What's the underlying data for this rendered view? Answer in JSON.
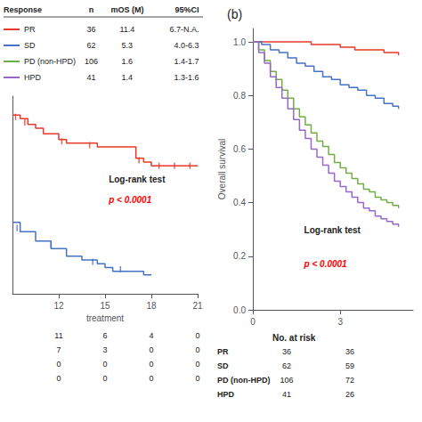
{
  "chart_data": [
    {
      "type": "line",
      "line_style": "step",
      "xlabel": "treatment",
      "xlim": [
        9,
        21
      ],
      "xticks": [
        12,
        15,
        18,
        21
      ],
      "ylim": [
        0,
        1.05
      ],
      "tick_labels": "x",
      "grid": false,
      "table": {
        "headers": [
          "Response",
          "n",
          "mOS (M)",
          "95%CI"
        ],
        "rows": [
          [
            "PR",
            "36",
            "11.4",
            "6.7-N.A."
          ],
          [
            "SD",
            "62",
            "5.3",
            "4.0-6.3"
          ],
          [
            "PD (non-HPD)",
            "106",
            "1.6",
            "1.4-1.7"
          ],
          [
            "HPD",
            "41",
            "1.4",
            "1.3-1.6"
          ]
        ],
        "colors": [
          "#e8392a",
          "#4472c4",
          "#70ad47",
          "#9966cc"
        ]
      },
      "series": [
        {
          "color": "#e8392a",
          "x": [
            9,
            9.5,
            10.0,
            10.5,
            11.0,
            12.0,
            12.5,
            14.5,
            17.0,
            17.5,
            18.0,
            21.0
          ],
          "values": [
            0.95,
            0.93,
            0.9,
            0.88,
            0.85,
            0.82,
            0.8,
            0.78,
            0.72,
            0.7,
            0.68,
            0.68
          ],
          "censor_x": [
            9.2,
            9.8,
            12.2,
            14.0,
            17.2,
            18.5,
            19.5,
            20.5
          ],
          "censor_values": [
            0.94,
            0.91,
            0.81,
            0.79,
            0.71,
            0.68,
            0.68,
            0.68
          ]
        },
        {
          "color": "#4472c4",
          "x": [
            9,
            9.5,
            10.5,
            11.5,
            12.5,
            13.5,
            14.5,
            15.0,
            15.5,
            17.5,
            18.0
          ],
          "values": [
            0.38,
            0.33,
            0.28,
            0.24,
            0.2,
            0.18,
            0.16,
            0.14,
            0.12,
            0.1,
            0.1
          ],
          "censor_x": [
            9.3,
            11.5,
            14.2,
            16.0
          ],
          "censor_values": [
            0.35,
            0.26,
            0.17,
            0.13
          ]
        }
      ],
      "annotations": [
        {
          "text": "Log-rank test"
        },
        {
          "text": "p < 0.0001",
          "color": "red"
        }
      ],
      "risk_table": {
        "times": [
          12,
          15,
          18,
          21
        ],
        "rows": [
          {
            "values": [
              11,
              6,
              4,
              0
            ]
          },
          {
            "values": [
              7,
              3,
              0,
              0
            ]
          },
          {
            "values": [
              0,
              0,
              0,
              0
            ]
          },
          {
            "values": [
              0,
              0,
              0,
              0
            ]
          }
        ]
      }
    },
    {
      "type": "line",
      "line_style": "step",
      "title": "(b)",
      "ylabel": "Overall survival",
      "xlim": [
        0,
        5.5
      ],
      "xticks": [
        0,
        3
      ],
      "ylim": [
        0,
        1.05
      ],
      "yticks": [
        {
          "value": 0,
          "label": "0.0"
        },
        0.2,
        0.4,
        0.6,
        0.8,
        {
          "value": 1,
          "label": "1.0"
        }
      ],
      "grid": false,
      "series": [
        {
          "color": "#e8392a",
          "x": [
            0,
            0.5,
            1,
            1.5,
            2,
            2.5,
            3,
            3.5,
            4,
            4.5,
            5
          ],
          "values": [
            1.0,
            1.0,
            1.0,
            1.0,
            0.99,
            0.99,
            0.98,
            0.97,
            0.97,
            0.96,
            0.95
          ]
        },
        {
          "color": "#4472c4",
          "x": [
            0,
            0.3,
            0.6,
            0.9,
            1.2,
            1.5,
            1.8,
            2.1,
            2.4,
            2.7,
            3.0,
            3.3,
            3.6,
            3.9,
            4.2,
            4.5,
            4.8,
            5.0
          ],
          "values": [
            1.0,
            0.99,
            0.97,
            0.96,
            0.94,
            0.92,
            0.91,
            0.89,
            0.87,
            0.86,
            0.84,
            0.83,
            0.82,
            0.8,
            0.79,
            0.77,
            0.76,
            0.75
          ]
        },
        {
          "color": "#70ad47",
          "x": [
            0,
            0.2,
            0.4,
            0.6,
            0.8,
            1.0,
            1.2,
            1.4,
            1.6,
            1.8,
            2.0,
            2.2,
            2.4,
            2.6,
            2.8,
            3.0,
            3.2,
            3.4,
            3.6,
            3.8,
            4.0,
            4.2,
            4.4,
            4.6,
            4.8,
            5.0
          ],
          "values": [
            1.0,
            0.97,
            0.93,
            0.89,
            0.86,
            0.82,
            0.79,
            0.75,
            0.72,
            0.69,
            0.66,
            0.63,
            0.61,
            0.58,
            0.55,
            0.53,
            0.51,
            0.49,
            0.47,
            0.45,
            0.44,
            0.42,
            0.41,
            0.4,
            0.39,
            0.38
          ]
        },
        {
          "color": "#9966cc",
          "x": [
            0,
            0.2,
            0.4,
            0.6,
            0.8,
            1.0,
            1.2,
            1.4,
            1.6,
            1.8,
            2.0,
            2.2,
            2.4,
            2.6,
            2.8,
            3.0,
            3.2,
            3.4,
            3.6,
            3.8,
            4.0,
            4.2,
            4.4,
            4.6,
            4.8,
            5.0
          ],
          "values": [
            1.0,
            0.96,
            0.92,
            0.87,
            0.83,
            0.79,
            0.75,
            0.71,
            0.67,
            0.64,
            0.6,
            0.57,
            0.54,
            0.51,
            0.48,
            0.46,
            0.44,
            0.42,
            0.4,
            0.38,
            0.37,
            0.35,
            0.34,
            0.33,
            0.32,
            0.31
          ]
        }
      ],
      "annotations": [
        {
          "text": "Log-rank test"
        },
        {
          "text": "p < 0.0001",
          "color": "red"
        }
      ],
      "risk_table": {
        "title": "No. at risk",
        "times": [
          0,
          3
        ],
        "rows": [
          {
            "label": "PR",
            "values": [
              36,
              36
            ]
          },
          {
            "label": "SD",
            "values": [
              62,
              59
            ]
          },
          {
            "label": "PD (non-HPD)",
            "values": [
              106,
              72
            ]
          },
          {
            "label": "HPD",
            "values": [
              41,
              26
            ]
          }
        ]
      }
    }
  ]
}
